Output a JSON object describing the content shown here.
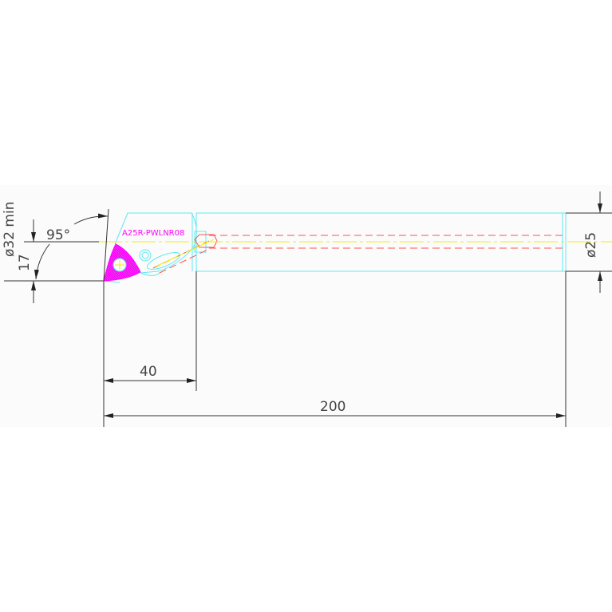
{
  "part_label": "A25R-PWLNR08",
  "dimensions": {
    "angle": "95°",
    "min_bore": "ø32 min",
    "offset": "17",
    "shank_diameter": "ø25",
    "head_length": "40",
    "overall_length": "200"
  },
  "colors": {
    "outline": "#5fe8f0",
    "insert": "#ff00ff",
    "hidden": "#ff5050",
    "centerline": "#f0f000",
    "dimension": "#333333"
  }
}
